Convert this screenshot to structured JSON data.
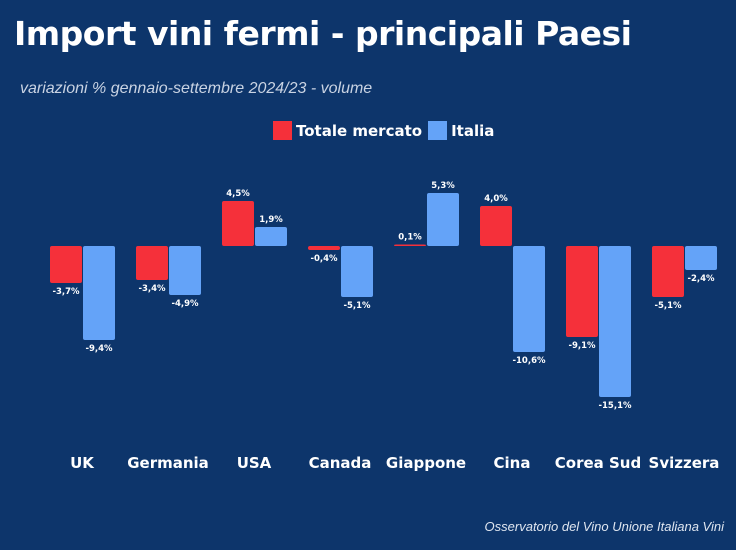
{
  "chart_data": {
    "type": "bar",
    "title": "Import vini fermi - principali Paesi",
    "subtitle": "variazioni % gennaio-settembre 2024/23 - volume",
    "categories": [
      "UK",
      "Germania",
      "USA",
      "Canada",
      "Giappone",
      "Cina",
      "Corea Sud",
      "Svizzera"
    ],
    "series": [
      {
        "name": "Totale mercato",
        "color": "#f5303a",
        "values": [
          -3.7,
          -3.4,
          4.5,
          -0.4,
          0.1,
          4.0,
          -9.1,
          -5.1
        ],
        "labels": [
          "-3,7%",
          "-3,4%",
          "4,5%",
          "-0,4%",
          "0,1%",
          "4,0%",
          "-9,1%",
          "-5,1%"
        ]
      },
      {
        "name": "Italia",
        "color": "#64a3f8",
        "values": [
          -9.4,
          -4.9,
          1.9,
          -5.1,
          5.3,
          -10.6,
          -15.1,
          -2.4
        ],
        "labels": [
          "-9,4%",
          "-4,9%",
          "1,9%",
          "-5,1%",
          "5,3%",
          "-10,6%",
          "-15,1%",
          "-2,4%"
        ]
      }
    ],
    "legend_position": "top-center",
    "grid": false,
    "background": "#0d356b",
    "source": "Osservatorio del Vino Unione Italiana Vini"
  }
}
